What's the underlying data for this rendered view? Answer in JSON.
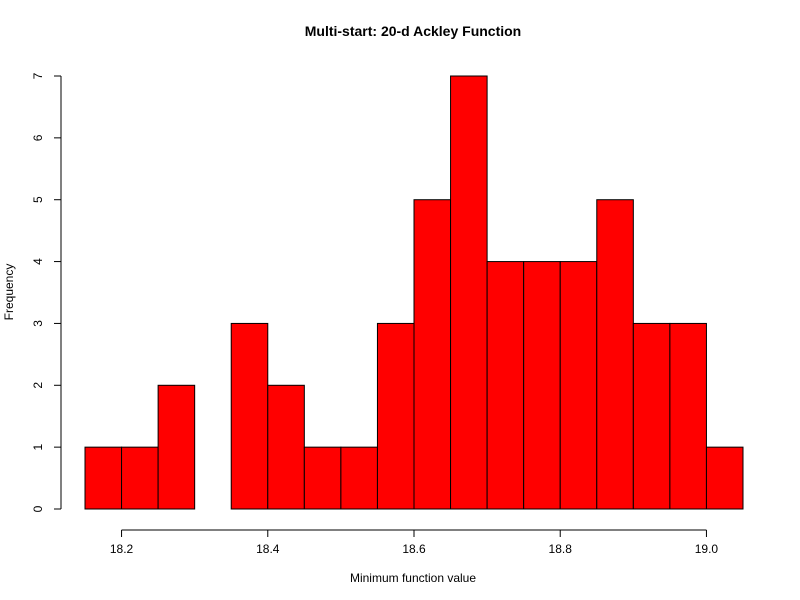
{
  "chart_data": {
    "type": "bar",
    "title": "Multi-start: 20-d Ackley Function",
    "xlabel": "Minimum function value",
    "ylabel": "Frequency",
    "bin_width": 0.05,
    "bins": [
      {
        "start": 18.15,
        "end": 18.2,
        "count": 1
      },
      {
        "start": 18.2,
        "end": 18.25,
        "count": 1
      },
      {
        "start": 18.25,
        "end": 18.3,
        "count": 2
      },
      {
        "start": 18.3,
        "end": 18.35,
        "count": 0
      },
      {
        "start": 18.35,
        "end": 18.4,
        "count": 3
      },
      {
        "start": 18.4,
        "end": 18.45,
        "count": 2
      },
      {
        "start": 18.45,
        "end": 18.5,
        "count": 1
      },
      {
        "start": 18.5,
        "end": 18.55,
        "count": 1
      },
      {
        "start": 18.55,
        "end": 18.6,
        "count": 3
      },
      {
        "start": 18.6,
        "end": 18.65,
        "count": 5
      },
      {
        "start": 18.65,
        "end": 18.7,
        "count": 7
      },
      {
        "start": 18.7,
        "end": 18.75,
        "count": 4
      },
      {
        "start": 18.75,
        "end": 18.8,
        "count": 4
      },
      {
        "start": 18.8,
        "end": 18.85,
        "count": 4
      },
      {
        "start": 18.85,
        "end": 18.9,
        "count": 5
      },
      {
        "start": 18.9,
        "end": 18.95,
        "count": 3
      },
      {
        "start": 18.95,
        "end": 19.0,
        "count": 3
      },
      {
        "start": 19.0,
        "end": 19.05,
        "count": 1
      }
    ],
    "x_ticks": [
      {
        "value": 18.2,
        "label": "18.2"
      },
      {
        "value": 18.4,
        "label": "18.4"
      },
      {
        "value": 18.6,
        "label": "18.6"
      },
      {
        "value": 18.8,
        "label": "18.8"
      },
      {
        "value": 19.0,
        "label": "19.0"
      }
    ],
    "y_ticks": [
      {
        "value": 0,
        "label": "0"
      },
      {
        "value": 1,
        "label": "1"
      },
      {
        "value": 2,
        "label": "2"
      },
      {
        "value": 3,
        "label": "3"
      },
      {
        "value": 4,
        "label": "4"
      },
      {
        "value": 5,
        "label": "5"
      },
      {
        "value": 6,
        "label": "6"
      },
      {
        "value": 7,
        "label": "7"
      }
    ],
    "xlim": [
      18.15,
      19.05
    ],
    "ylim": [
      0,
      7
    ],
    "grid": false,
    "bar_color": "#ff0000",
    "bar_edge_color": "#000000"
  }
}
